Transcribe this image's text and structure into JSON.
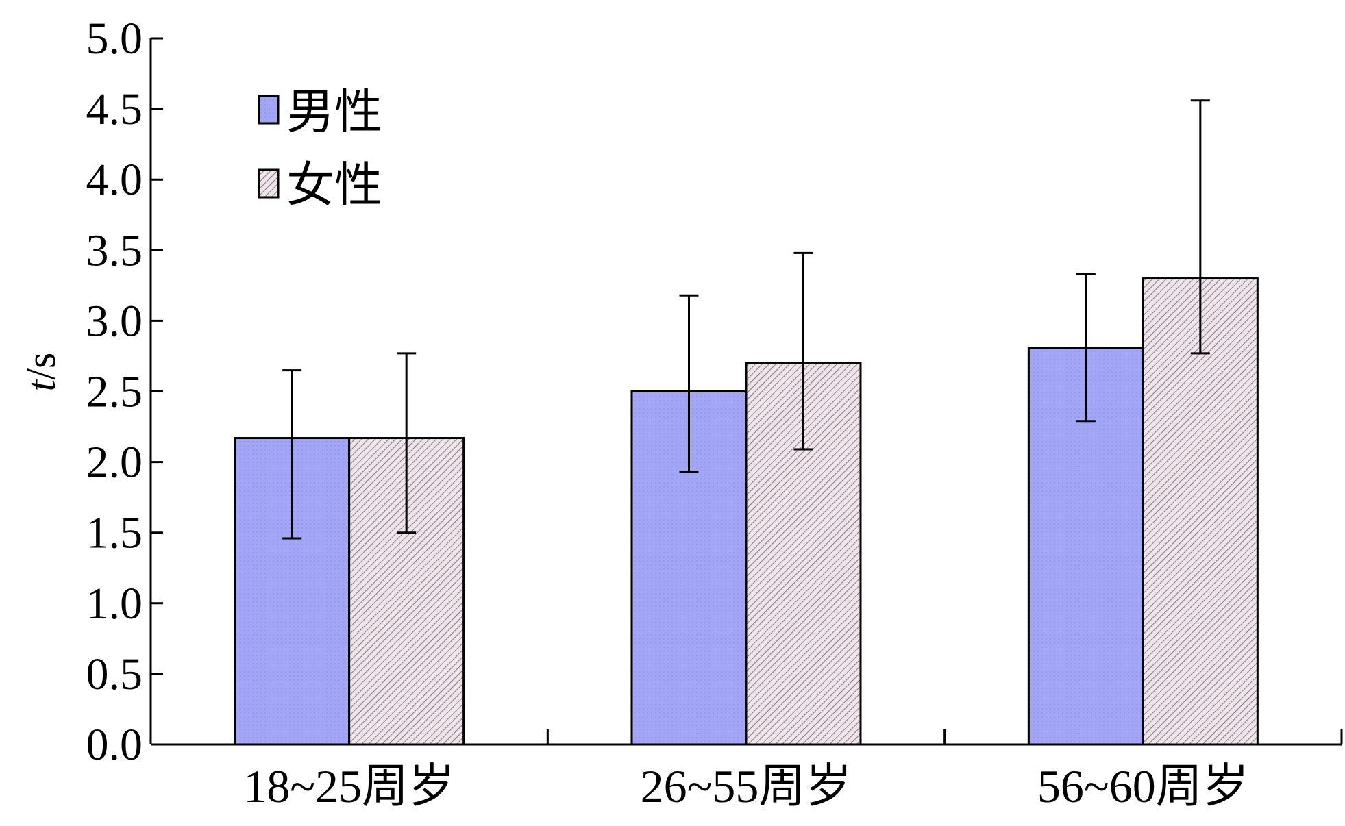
{
  "chart_data": {
    "type": "bar",
    "title": "",
    "xlabel": "",
    "ylabel": {
      "italic": "t",
      "rest": "/s"
    },
    "categories": [
      "18~25周岁",
      "26~55周岁",
      "56~60周岁"
    ],
    "series": [
      {
        "name": "男性",
        "values": [
          2.17,
          2.5,
          2.81
        ],
        "error_low": [
          1.46,
          1.93,
          2.29
        ],
        "error_high": [
          2.65,
          3.18,
          3.33
        ],
        "pattern": "dots",
        "color": "#a3a6f5"
      },
      {
        "name": "女性",
        "values": [
          2.17,
          2.7,
          3.3
        ],
        "error_low": [
          1.5,
          2.09,
          2.77
        ],
        "error_high": [
          2.77,
          3.48,
          4.56
        ],
        "pattern": "hatch",
        "color": "#ece0e6"
      }
    ],
    "ylim": [
      0,
      5.0
    ],
    "yticks": [
      "0.0",
      "0.5",
      "1.0",
      "1.5",
      "2.0",
      "2.5",
      "3.0",
      "3.5",
      "4.0",
      "4.5",
      "5.0"
    ],
    "grid": false,
    "legend_position": "top-left"
  }
}
